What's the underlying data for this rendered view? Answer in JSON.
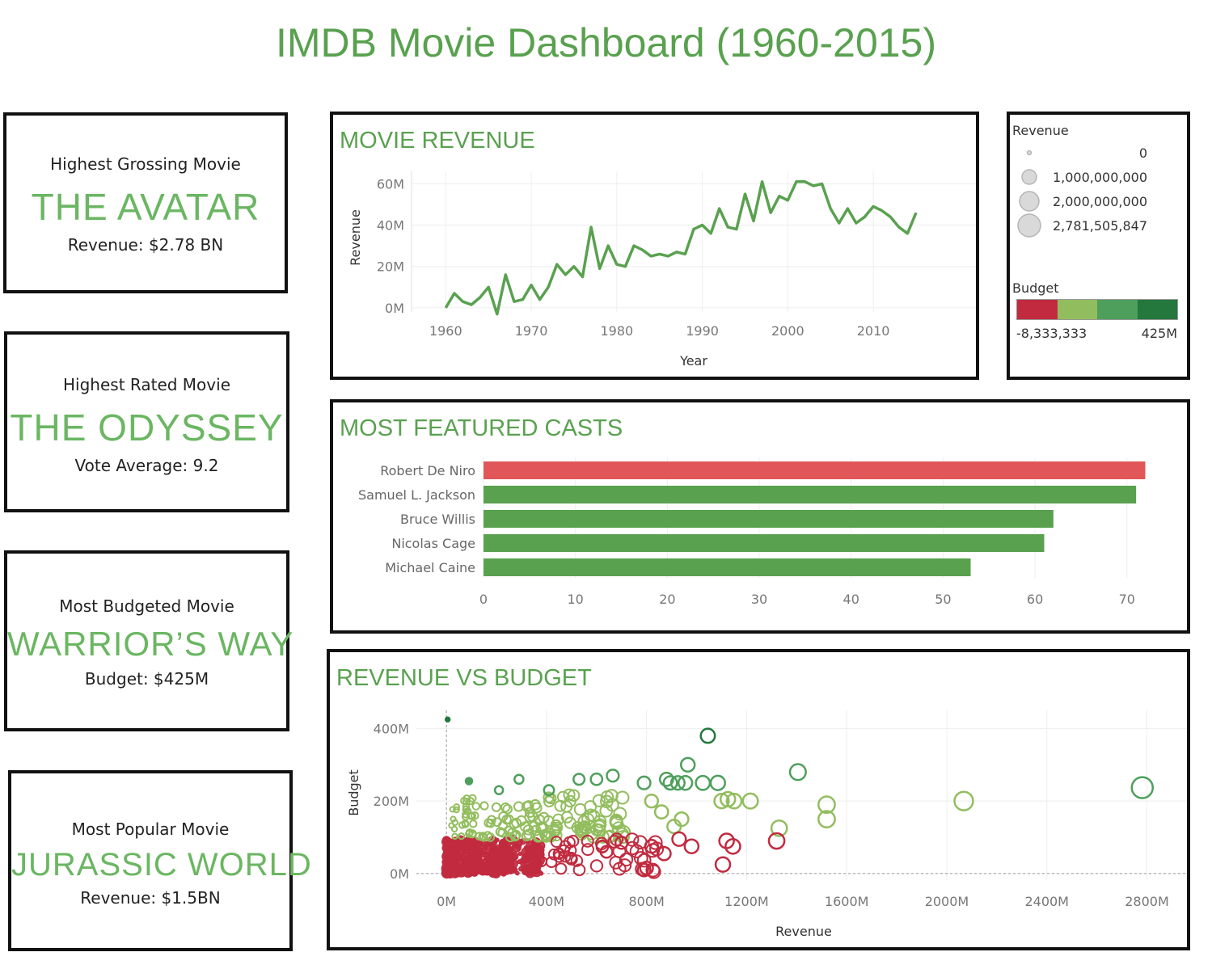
{
  "title": "IMDB Movie Dashboard (1960-2015)",
  "kpis": [
    {
      "label": "Highest Grossing Movie",
      "value": "THE AVATAR",
      "sub": "Revenue: $2.78 BN"
    },
    {
      "label": "Highest Rated Movie",
      "value": "THE ODYSSEY",
      "sub": "Vote Average: 9.2"
    },
    {
      "label": "Most Budgeted Movie",
      "value": "WARRIOR’S WAY",
      "sub": "Budget: $425M"
    },
    {
      "label": "Most Popular Movie",
      "value": "JURASSIC WORLD",
      "sub": "Revenue: $1.5BN"
    }
  ],
  "colors": {
    "accent": "#59a14f",
    "kpi_value": "#6bb662",
    "highlight_bar": "#e15759",
    "line": "#59a14f",
    "budget_scale": [
      "#c22a3f",
      "#92bd5e",
      "#4e9f5c",
      "#24773d"
    ]
  },
  "legend": {
    "revenue_title": "Revenue",
    "revenue_sizes": [
      "0",
      "1,000,000,000",
      "2,000,000,000",
      "2,781,505,847"
    ],
    "budget_title": "Budget",
    "budget_min": "-8,333,333",
    "budget_max": "425M"
  },
  "chart_data": [
    {
      "type": "line",
      "title": "MOVIE REVENUE",
      "xlabel": "Year",
      "ylabel": "Revenue",
      "xlim": [
        1956,
        2022
      ],
      "ylim": [
        -2000000,
        66000000
      ],
      "x_ticks": [
        1960,
        1970,
        1980,
        1990,
        2000,
        2010
      ],
      "y_ticks": [
        {
          "v": 0,
          "label": "0M"
        },
        {
          "v": 20000000,
          "label": "20M"
        },
        {
          "v": 40000000,
          "label": "40M"
        },
        {
          "v": 60000000,
          "label": "60M"
        }
      ],
      "series": [
        {
          "x": [
            1960,
            1961,
            1962,
            1963,
            1964,
            1965,
            1966,
            1967,
            1968,
            1969,
            1970,
            1971,
            1972,
            1973,
            1974,
            1975,
            1976,
            1977,
            1978,
            1979,
            1980,
            1981,
            1982,
            1983,
            1984,
            1985,
            1986,
            1987,
            1988,
            1989,
            1990,
            1991,
            1992,
            1993,
            1994,
            1995,
            1996,
            1997,
            1998,
            1999,
            2000,
            2001,
            2002,
            2003,
            2004,
            2005,
            2006,
            2007,
            2008,
            2009,
            2010,
            2011,
            2012,
            2013,
            2014,
            2015
          ],
          "y": [
            0,
            7000000,
            3000000,
            1500000,
            5000000,
            10000000,
            -3000000,
            16000000,
            3000000,
            4000000,
            11000000,
            4000000,
            10000000,
            21000000,
            16000000,
            20000000,
            15000000,
            39000000,
            19000000,
            30000000,
            21000000,
            20000000,
            30000000,
            28000000,
            25000000,
            26000000,
            25000000,
            27000000,
            26000000,
            38000000,
            40000000,
            36000000,
            48000000,
            39000000,
            38000000,
            55000000,
            42000000,
            61000000,
            46000000,
            54000000,
            52000000,
            61000000,
            61000000,
            59000000,
            60000000,
            48000000,
            41000000,
            48000000,
            41000000,
            44000000,
            49000000,
            47000000,
            44000000,
            39000000,
            36000000,
            46000000
          ]
        }
      ]
    },
    {
      "type": "bar",
      "title": "MOST FEATURED CASTS",
      "categories": [
        "Robert De Niro",
        "Samuel L. Jackson",
        "Bruce Willis",
        "Nicolas Cage",
        "Michael Caine"
      ],
      "values": [
        72,
        71,
        62,
        61,
        53
      ],
      "highlight_index": 0,
      "xlim": [
        0,
        76
      ],
      "x_ticks": [
        0,
        10,
        20,
        30,
        40,
        50,
        60,
        70
      ]
    },
    {
      "type": "scatter",
      "title": "REVENUE VS BUDGET",
      "xlabel": "Revenue",
      "ylabel": "Budget",
      "xlim": [
        -120000000,
        2960000000
      ],
      "ylim": [
        -18000000,
        450000000
      ],
      "x_ticks": [
        {
          "v": 0,
          "label": "0M"
        },
        {
          "v": 400000000,
          "label": "400M"
        },
        {
          "v": 800000000,
          "label": "800M"
        },
        {
          "v": 1200000000,
          "label": "1200M"
        },
        {
          "v": 1600000000,
          "label": "1600M"
        },
        {
          "v": 2000000000,
          "label": "2000M"
        },
        {
          "v": 2400000000,
          "label": "2400M"
        },
        {
          "v": 2800000000,
          "label": "2800M"
        }
      ],
      "y_ticks": [
        {
          "v": 0,
          "label": "0M"
        },
        {
          "v": 200000000,
          "label": "200M"
        },
        {
          "v": 400000000,
          "label": "400M"
        }
      ],
      "points": [
        {
          "x": 2781505847,
          "y": 237000000
        },
        {
          "x": 2068000000,
          "y": 200000000
        },
        {
          "x": 1520000000,
          "y": 190000000
        },
        {
          "x": 1520000000,
          "y": 150000000
        },
        {
          "x": 1405000000,
          "y": 280000000
        },
        {
          "x": 1330000000,
          "y": 125000000
        },
        {
          "x": 1215000000,
          "y": 200000000
        },
        {
          "x": 1150000000,
          "y": 200000000
        },
        {
          "x": 1125000000,
          "y": 205000000
        },
        {
          "x": 1100000000,
          "y": 200000000
        },
        {
          "x": 1085000000,
          "y": 250000000
        },
        {
          "x": 1045000000,
          "y": 380000000
        },
        {
          "x": 1025000000,
          "y": 250000000
        },
        {
          "x": 965000000,
          "y": 300000000
        },
        {
          "x": 955000000,
          "y": 250000000
        },
        {
          "x": 925000000,
          "y": 250000000
        },
        {
          "x": 895000000,
          "y": 250000000
        },
        {
          "x": 880000000,
          "y": 260000000
        },
        {
          "x": 940000000,
          "y": 150000000
        },
        {
          "x": 910000000,
          "y": 130000000
        },
        {
          "x": 860000000,
          "y": 170000000
        },
        {
          "x": 820000000,
          "y": 200000000
        },
        {
          "x": 790000000,
          "y": 250000000
        },
        {
          "x": 665000000,
          "y": 270000000
        },
        {
          "x": 600000000,
          "y": 260000000
        },
        {
          "x": 530000000,
          "y": 260000000
        },
        {
          "x": 410000000,
          "y": 230000000
        },
        {
          "x": 290000000,
          "y": 260000000
        },
        {
          "x": 210000000,
          "y": 230000000
        },
        {
          "x": 5000000,
          "y": 425000000
        },
        {
          "x": 90000000,
          "y": 255000000
        },
        {
          "x": 1120000000,
          "y": 90000000
        },
        {
          "x": 1145000000,
          "y": 75000000
        },
        {
          "x": 1105000000,
          "y": 25000000
        },
        {
          "x": 980000000,
          "y": 75000000
        },
        {
          "x": 930000000,
          "y": 95000000
        },
        {
          "x": 870000000,
          "y": 55000000
        },
        {
          "x": 820000000,
          "y": 75000000
        },
        {
          "x": 790000000,
          "y": 10000000
        },
        {
          "x": 800000000,
          "y": 15000000
        },
        {
          "x": 700000000,
          "y": 85000000
        },
        {
          "x": 640000000,
          "y": 60000000
        },
        {
          "x": 450000000,
          "y": 55000000
        },
        {
          "x": 500000000,
          "y": 40000000
        },
        {
          "x": 1320000000,
          "y": 90000000
        }
      ],
      "note": "Dense cluster of low-revenue / low-budget movies near the origin is drawn as an aggregate of many small points."
    }
  ]
}
